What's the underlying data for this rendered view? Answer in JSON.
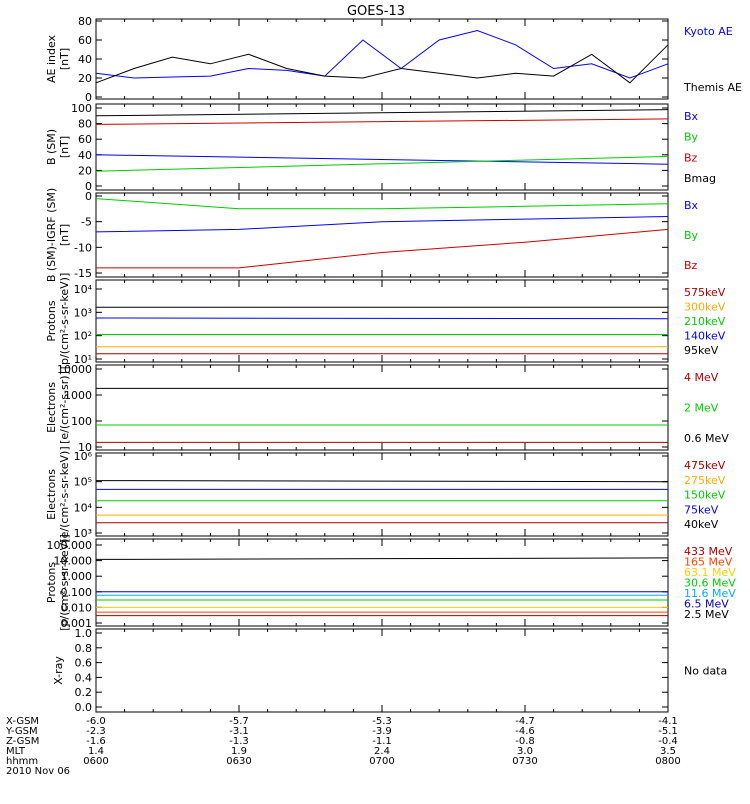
{
  "title": "GOES-13",
  "panels": [
    {
      "id": "ae",
      "ylabel": [
        "AE index",
        "[nT]"
      ],
      "yticks": [
        "0",
        "20",
        "40",
        "60",
        "80"
      ],
      "legend": [
        {
          "text": "Kyoto AE",
          "color": "#0000ff"
        },
        {
          "text": "Themis AE",
          "color": "#000000"
        }
      ]
    },
    {
      "id": "bsm",
      "ylabel": [
        "B (SM)",
        "[nT]"
      ],
      "yticks": [
        "0",
        "20",
        "40",
        "60",
        "80",
        "100"
      ],
      "legend": [
        {
          "text": "Bx",
          "color": "#0000ff"
        },
        {
          "text": "By",
          "color": "#00cc00"
        },
        {
          "text": "Bz",
          "color": "#cc0000"
        },
        {
          "text": "Bmag",
          "color": "#000000"
        }
      ]
    },
    {
      "id": "bigrf",
      "ylabel": [
        "B (SM)-IGRF (SM)",
        "[nT]"
      ],
      "yticks": [
        "-15",
        "-10",
        "-5",
        "0"
      ],
      "legend": [
        {
          "text": "Bx",
          "color": "#0000ff"
        },
        {
          "text": "By",
          "color": "#00cc00"
        },
        {
          "text": "Bz",
          "color": "#cc0000"
        }
      ]
    },
    {
      "id": "protons1",
      "ylabel": [
        "Protons",
        "[p/(cm²-s-sr-keV)]"
      ],
      "yticks": [
        "10¹",
        "10²",
        "10³",
        "10⁴"
      ],
      "legend": [
        {
          "text": "575keV",
          "color": "#aa0000"
        },
        {
          "text": "300keV",
          "color": "#ffaa00"
        },
        {
          "text": "210keV",
          "color": "#00cc00"
        },
        {
          "text": "140keV",
          "color": "#0000ff"
        },
        {
          "text": "95keV",
          "color": "#000000"
        }
      ]
    },
    {
      "id": "electrons1",
      "ylabel": [
        "Electrons",
        "[e/(cm²-s-sr)]"
      ],
      "yticks": [
        "10",
        "100",
        "1000",
        "10000"
      ],
      "legend": [
        {
          "text": "4 MeV",
          "color": "#aa0000"
        },
        {
          "text": "2 MeV",
          "color": "#00cc00"
        },
        {
          "text": "0.6 MeV",
          "color": "#000000"
        }
      ]
    },
    {
      "id": "electrons2",
      "ylabel": [
        "Electrons",
        "[e/(cm²-s-sr-keV)]"
      ],
      "yticks": [
        "10³",
        "10⁴",
        "10⁵",
        "10⁶"
      ],
      "legend": [
        {
          "text": "475keV",
          "color": "#aa0000"
        },
        {
          "text": "275keV",
          "color": "#ffaa00"
        },
        {
          "text": "150keV",
          "color": "#00cc00"
        },
        {
          "text": "75keV",
          "color": "#0000ff"
        },
        {
          "text": "40keV",
          "color": "#000000"
        }
      ]
    },
    {
      "id": "protons2",
      "ylabel": [
        "Protons",
        "[p/(cm²-s-sr-keV)]"
      ],
      "yticks": [
        "0.001",
        "0.010",
        "0.100",
        "1.000",
        "10.000",
        "100.000"
      ],
      "legend": [
        {
          "text": "433 MeV",
          "color": "#aa0000"
        },
        {
          "text": "165 MeV",
          "color": "#ff4400"
        },
        {
          "text": "63.1 MeV",
          "color": "#ffcc00"
        },
        {
          "text": "30.6 MeV",
          "color": "#00cc00"
        },
        {
          "text": "11.6 MeV",
          "color": "#00aaff"
        },
        {
          "text": "6.5 MeV",
          "color": "#0000cc"
        },
        {
          "text": "2.5 MeV",
          "color": "#000000"
        }
      ]
    },
    {
      "id": "xray",
      "ylabel": [
        "X-ray",
        ""
      ],
      "yticks": [
        "0.0",
        "0.2",
        "0.4",
        "0.6",
        "0.8",
        "1.0"
      ],
      "legend": [
        {
          "text": "No data",
          "color": "#000000"
        }
      ]
    }
  ],
  "xaxis": {
    "row_labels": [
      "X-GSM",
      "Y-GSM",
      "Z-GSM",
      "MLT",
      "hhmm"
    ],
    "columns": [
      [
        "-6.0",
        "-2.3",
        "-1.6",
        "1.4",
        "0600"
      ],
      [
        "-5.7",
        "-3.1",
        "-1.3",
        "1.9",
        "0630"
      ],
      [
        "-5.3",
        "-3.9",
        "-1.1",
        "2.4",
        "0700"
      ],
      [
        "-4.7",
        "-4.6",
        "-0.8",
        "3.0",
        "0730"
      ],
      [
        "-4.1",
        "-5.1",
        "-0.4",
        "3.5",
        "0800"
      ]
    ],
    "date": "2010 Nov 06"
  },
  "chart_data": [
    {
      "type": "line",
      "xlim": [
        "06:00",
        "08:00"
      ],
      "ylabel": "AE index [nT]",
      "ylim": [
        0,
        80
      ],
      "x": [
        "06:00",
        "06:08",
        "06:16",
        "06:24",
        "06:32",
        "06:40",
        "06:48",
        "06:56",
        "07:04",
        "07:12",
        "07:20",
        "07:28",
        "07:36",
        "07:44",
        "07:52",
        "08:00"
      ],
      "series": [
        {
          "name": "Kyoto AE",
          "color": "#0000ff",
          "values": [
            25,
            20,
            21,
            22,
            30,
            28,
            22,
            60,
            30,
            60,
            70,
            55,
            30,
            35,
            20,
            35
          ]
        },
        {
          "name": "Themis AE",
          "color": "#000000",
          "values": [
            15,
            30,
            42,
            35,
            45,
            30,
            22,
            20,
            30,
            25,
            20,
            25,
            22,
            45,
            15,
            55
          ]
        }
      ]
    },
    {
      "type": "line",
      "xlim": [
        "06:00",
        "08:00"
      ],
      "ylabel": "B (SM) [nT]",
      "ylim": [
        0,
        100
      ],
      "x": [
        "06:00",
        "08:00"
      ],
      "series": [
        {
          "name": "Bmag",
          "color": "#000000",
          "values": [
            90,
            98
          ]
        },
        {
          "name": "Bz",
          "color": "#cc0000",
          "values": [
            79,
            86
          ]
        },
        {
          "name": "Bx",
          "color": "#0000ff",
          "values": [
            40,
            28
          ]
        },
        {
          "name": "By",
          "color": "#00cc00",
          "values": [
            19,
            38
          ]
        }
      ]
    },
    {
      "type": "line",
      "xlim": [
        "06:00",
        "08:00"
      ],
      "ylabel": "B (SM)-IGRF (SM) [nT]",
      "ylim": [
        -15,
        0
      ],
      "x": [
        "06:00",
        "06:30",
        "07:00",
        "07:30",
        "08:00"
      ],
      "series": [
        {
          "name": "By",
          "color": "#00cc00",
          "values": [
            -0.5,
            -2.5,
            -2.5,
            -2.0,
            -1.5
          ]
        },
        {
          "name": "Bx",
          "color": "#0000ff",
          "values": [
            -7,
            -6.5,
            -5,
            -4.5,
            -4
          ]
        },
        {
          "name": "Bz",
          "color": "#cc0000",
          "values": [
            -14,
            -14,
            -11,
            -9,
            -6.5
          ]
        }
      ]
    },
    {
      "type": "line",
      "xlim": [
        "06:00",
        "08:00"
      ],
      "ylabel": "Protons [p/(cm²-s-sr-keV)]",
      "yscale": "log",
      "ylim": [
        10,
        100000
      ],
      "x": [
        "06:00",
        "08:00"
      ],
      "series": [
        {
          "name": "95keV",
          "color": "#000000",
          "values": [
            9000,
            9000
          ]
        },
        {
          "name": "140keV",
          "color": "#0000ff",
          "values": [
            2200,
            2000
          ]
        },
        {
          "name": "210keV",
          "color": "#00cc00",
          "values": [
            250,
            250
          ]
        },
        {
          "name": "300keV",
          "color": "#ffaa00",
          "values": [
            50,
            50
          ]
        },
        {
          "name": "575keV",
          "color": "#aa0000",
          "values": [
            20,
            20
          ]
        }
      ]
    },
    {
      "type": "line",
      "xlim": [
        "06:00",
        "08:00"
      ],
      "ylabel": "Electrons [e/(cm²-s-sr)]",
      "yscale": "log",
      "ylim": [
        10,
        10000
      ],
      "x": [
        "06:00",
        "08:00"
      ],
      "series": [
        {
          "name": "0.6 MeV",
          "color": "#000000",
          "values": [
            1800,
            1800
          ]
        },
        {
          "name": "2 MeV",
          "color": "#00cc00",
          "values": [
            70,
            70
          ]
        },
        {
          "name": "4 MeV",
          "color": "#aa0000",
          "values": [
            15,
            15
          ]
        }
      ]
    },
    {
      "type": "line",
      "xlim": [
        "06:00",
        "08:00"
      ],
      "ylabel": "Electrons [e/(cm²-s-sr-keV)]",
      "yscale": "log",
      "ylim": [
        1000,
        1000000
      ],
      "x": [
        "06:00",
        "08:00"
      ],
      "series": [
        {
          "name": "40keV",
          "color": "#000000",
          "values": [
            110000,
            100000
          ]
        },
        {
          "name": "75keV",
          "color": "#0000ff",
          "values": [
            50000,
            50000
          ]
        },
        {
          "name": "150keV",
          "color": "#00cc00",
          "values": [
            18000,
            18000
          ]
        },
        {
          "name": "275keV",
          "color": "#ffaa00",
          "values": [
            5000,
            5000
          ]
        },
        {
          "name": "475keV",
          "color": "#aa0000",
          "values": [
            2500,
            2500
          ]
        }
      ]
    },
    {
      "type": "line",
      "xlim": [
        "06:00",
        "08:00"
      ],
      "ylabel": "Protons [p/(cm²-s-sr-keV)]",
      "yscale": "log",
      "ylim": [
        0.001,
        100
      ],
      "x": [
        "06:00",
        "08:00"
      ],
      "series": [
        {
          "name": "2.5 MeV",
          "color": "#000000",
          "values": [
            12,
            15
          ]
        },
        {
          "name": "6.5 MeV",
          "color": "#0000cc",
          "values": [
            0.1,
            0.1
          ]
        },
        {
          "name": "11.6 MeV",
          "color": "#00aaff",
          "values": [
            0.06,
            0.06
          ]
        },
        {
          "name": "30.6 MeV",
          "color": "#00cc00",
          "values": [
            0.03,
            0.03
          ]
        },
        {
          "name": "63.1 MeV",
          "color": "#ffcc00",
          "values": [
            0.01,
            0.01
          ]
        },
        {
          "name": "165 MeV",
          "color": "#ff4400",
          "values": [
            0.005,
            0.005
          ]
        },
        {
          "name": "433 MeV",
          "color": "#aa0000",
          "values": [
            0.003,
            0.003
          ]
        }
      ]
    },
    {
      "type": "line",
      "xlim": [
        "06:00",
        "08:00"
      ],
      "ylabel": "X-ray",
      "ylim": [
        0,
        1
      ],
      "series": []
    }
  ]
}
